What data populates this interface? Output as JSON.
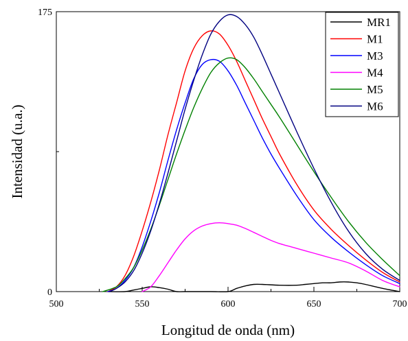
{
  "chart_data": {
    "type": "line",
    "title": "",
    "xlabel": "Longitud de onda (nm)",
    "ylabel": "Intensidad (u.a.)",
    "xlim": [
      500,
      700
    ],
    "ylim": [
      0,
      175
    ],
    "xticks": [
      500,
      550,
      600,
      650,
      700
    ],
    "yticks_labeled": [
      0,
      175
    ],
    "yticks_minor": [
      87.5
    ],
    "grid": false,
    "legend": "top-right",
    "series": [
      {
        "name": "MR1",
        "color": "#000000",
        "x": [
          530,
          540,
          545,
          550,
          555,
          560,
          565,
          570,
          575,
          590,
          600,
          605,
          610,
          615,
          620,
          630,
          640,
          645,
          650,
          655,
          660,
          665,
          670,
          675,
          680,
          690,
          700
        ],
        "y": [
          0,
          0,
          1,
          2,
          3,
          2.5,
          1.5,
          0,
          0,
          0,
          0,
          2,
          3.5,
          4.5,
          4.5,
          4,
          4,
          4.5,
          5,
          5.5,
          5.5,
          6,
          6,
          5.5,
          4.5,
          2,
          0
        ]
      },
      {
        "name": "M1",
        "color": "#ff0000",
        "x": [
          530,
          535,
          540,
          545,
          550,
          555,
          560,
          565,
          570,
          575,
          580,
          585,
          590,
          595,
          600,
          605,
          610,
          615,
          620,
          625,
          630,
          640,
          650,
          660,
          670,
          680,
          690,
          700
        ],
        "y": [
          0,
          3,
          10,
          22,
          38,
          56,
          76,
          98,
          118,
          138,
          152,
          160,
          163,
          161,
          154,
          144,
          132,
          120,
          108,
          97,
          86,
          67,
          51,
          39,
          29,
          20,
          12,
          6
        ]
      },
      {
        "name": "M3",
        "color": "#0000ff",
        "x": [
          530,
          535,
          540,
          545,
          550,
          555,
          560,
          565,
          570,
          575,
          580,
          585,
          590,
          595,
          600,
          605,
          610,
          615,
          620,
          625,
          630,
          640,
          650,
          660,
          670,
          680,
          690,
          700
        ],
        "y": [
          0,
          2,
          7,
          15,
          28,
          44,
          62,
          82,
          101,
          118,
          133,
          142,
          145,
          144,
          138,
          129,
          118,
          107,
          96,
          86,
          77,
          60,
          45,
          34,
          25,
          17,
          10,
          5
        ]
      },
      {
        "name": "M4",
        "color": "#ff00ff",
        "x": [
          550,
          555,
          560,
          565,
          570,
          575,
          580,
          585,
          590,
          595,
          600,
          605,
          610,
          615,
          620,
          625,
          630,
          635,
          640,
          650,
          660,
          670,
          680,
          690,
          700
        ],
        "y": [
          0,
          3,
          10,
          18,
          26,
          33,
          38,
          41,
          42.5,
          43,
          42.5,
          41.5,
          39.5,
          37,
          34.5,
          32,
          30,
          28.5,
          27,
          24,
          21,
          18,
          13,
          7,
          3
        ]
      },
      {
        "name": "M5",
        "color": "#008000",
        "x": [
          527,
          535,
          540,
          545,
          550,
          555,
          560,
          565,
          570,
          575,
          580,
          585,
          590,
          595,
          600,
          605,
          610,
          615,
          620,
          625,
          630,
          640,
          650,
          660,
          670,
          680,
          690,
          700
        ],
        "y": [
          0,
          3,
          8,
          15,
          26,
          39,
          54,
          70,
          86,
          101,
          115,
          127,
          137,
          143,
          146,
          145,
          140,
          133,
          125,
          117,
          109,
          92,
          75,
          59,
          44,
          31,
          20,
          10
        ]
      },
      {
        "name": "M6",
        "color": "#000080",
        "x": [
          531,
          535,
          540,
          545,
          550,
          555,
          560,
          565,
          570,
          575,
          580,
          585,
          590,
          595,
          600,
          605,
          610,
          615,
          620,
          625,
          630,
          640,
          650,
          660,
          670,
          680,
          690,
          700
        ],
        "y": [
          0,
          2,
          6,
          13,
          24,
          38,
          55,
          74,
          94,
          114,
          132,
          148,
          161,
          169,
          173,
          172,
          167,
          159,
          148,
          136,
          124,
          100,
          77,
          56,
          38,
          24,
          14,
          7
        ]
      }
    ]
  }
}
